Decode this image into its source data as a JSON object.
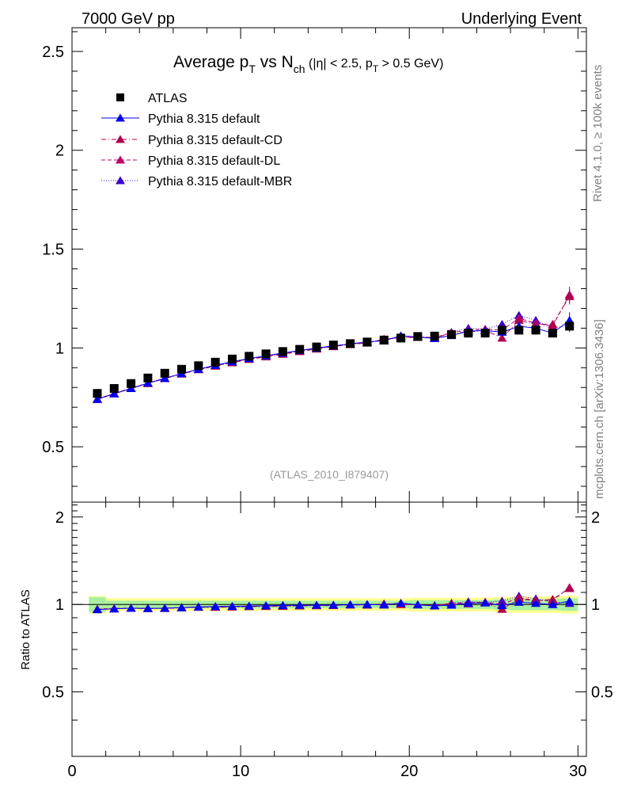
{
  "header": {
    "left": "7000 GeV pp",
    "right": "Underlying Event"
  },
  "side_labels": {
    "rivet": "Rivet 4.1.0, ≥ 100k events",
    "mcplots": "mcplots.cern.ch [arXiv:1306.3436]"
  },
  "colors": {
    "atlas": "#000000",
    "default": "#0000ee",
    "cd": "#b0004c",
    "dl": "#c0006a",
    "mbr": "#3a00cc",
    "band_inner": "#a8f0a0",
    "band_outer": "#ffff90"
  },
  "chart_data": [
    {
      "type": "scatter",
      "panel": "main",
      "title": "Average pT vs Nch (|η| < 2.5, pT > 0.5 GeV)",
      "title_parts": {
        "a": "Average p",
        "a_sub": "T",
        "b": " vs N",
        "b_sub": "ch",
        "c": " (|η| < 2.5, p",
        "c_sub": "T",
        "d": " > 0.5 GeV)"
      },
      "watermark": "(ATLAS_2010_I879407)",
      "xlim": [
        0,
        30.5
      ],
      "ylim": [
        0.22,
        2.62
      ],
      "y_ticks": [
        0.5,
        1,
        1.5,
        2,
        2.5
      ],
      "y_tick_labels": [
        "0.5",
        "1",
        "1.5",
        "2",
        "2.5"
      ],
      "x": [
        1.5,
        2.5,
        3.5,
        4.5,
        5.5,
        6.5,
        7.5,
        8.5,
        9.5,
        10.5,
        11.5,
        12.5,
        13.5,
        14.5,
        15.5,
        16.5,
        17.5,
        18.5,
        19.5,
        20.5,
        21.5,
        22.5,
        23.5,
        24.5,
        25.5,
        26.5,
        27.5,
        28.5,
        29.5
      ],
      "series": [
        {
          "name": "ATLAS",
          "marker": "square",
          "color_key": "atlas",
          "values": [
            0.77,
            0.795,
            0.82,
            0.848,
            0.872,
            0.892,
            0.91,
            0.928,
            0.944,
            0.958,
            0.97,
            0.982,
            0.993,
            1.005,
            1.015,
            1.022,
            1.03,
            1.04,
            1.05,
            1.058,
            1.06,
            1.068,
            1.075,
            1.075,
            1.09,
            1.09,
            1.09,
            1.075,
            1.11
          ]
        },
        {
          "name": "Pythia 8.315 default",
          "marker": "triangle",
          "line": "solid",
          "color_key": "default",
          "values": [
            0.74,
            0.768,
            0.795,
            0.822,
            0.846,
            0.87,
            0.892,
            0.912,
            0.93,
            0.946,
            0.96,
            0.974,
            0.987,
            0.999,
            1.01,
            1.02,
            1.03,
            1.037,
            1.062,
            1.055,
            1.048,
            1.063,
            1.085,
            1.088,
            1.08,
            1.11,
            1.1,
            1.075,
            1.14
          ]
        },
        {
          "name": "Pythia 8.315 default-CD",
          "marker": "triangle",
          "line": "dashdot",
          "color_key": "cd",
          "values": [
            0.74,
            0.768,
            0.795,
            0.82,
            0.845,
            0.868,
            0.89,
            0.908,
            0.925,
            0.942,
            0.955,
            0.968,
            0.982,
            0.995,
            1.007,
            1.018,
            1.025,
            1.045,
            1.05,
            1.055,
            1.05,
            1.075,
            1.08,
            1.09,
            1.05,
            1.14,
            1.12,
            1.12,
            1.26
          ]
        },
        {
          "name": "Pythia 8.315 default-DL",
          "marker": "triangle",
          "line": "dashed",
          "color_key": "dl",
          "values": [
            0.742,
            0.77,
            0.797,
            0.822,
            0.847,
            0.87,
            0.892,
            0.91,
            0.927,
            0.944,
            0.957,
            0.97,
            0.984,
            0.997,
            1.008,
            1.019,
            1.026,
            1.044,
            1.052,
            1.056,
            1.052,
            1.078,
            1.09,
            1.095,
            1.09,
            1.15,
            1.125,
            1.11,
            1.27
          ]
        },
        {
          "name": "Pythia 8.315 default-MBR",
          "marker": "triangle",
          "line": "dotted",
          "color_key": "mbr",
          "values": [
            0.741,
            0.769,
            0.796,
            0.823,
            0.847,
            0.871,
            0.893,
            0.913,
            0.931,
            0.947,
            0.961,
            0.975,
            0.988,
            1.0,
            1.011,
            1.021,
            1.031,
            1.036,
            1.06,
            1.056,
            1.05,
            1.08,
            1.1,
            1.095,
            1.12,
            1.165,
            1.14,
            1.095,
            1.12
          ]
        }
      ]
    },
    {
      "type": "scatter",
      "panel": "ratio",
      "ylabel": "Ratio to ATLAS",
      "xlim": [
        0,
        30.5
      ],
      "ylim": [
        0.3,
        2.25
      ],
      "y_ticks": [
        0.5,
        1,
        2
      ],
      "y_tick_labels": [
        "0.5",
        "1",
        "2"
      ],
      "x_ticks": [
        0,
        10,
        20,
        30
      ],
      "x_tick_labels": [
        "0",
        "10",
        "20",
        "30"
      ],
      "band_inner_halfwidth": [
        0.06,
        0.03,
        0.03,
        0.03,
        0.03,
        0.03,
        0.03,
        0.03,
        0.03,
        0.03,
        0.03,
        0.03,
        0.03,
        0.03,
        0.03,
        0.03,
        0.03,
        0.03,
        0.03,
        0.035,
        0.035,
        0.035,
        0.035,
        0.035,
        0.04,
        0.045,
        0.045,
        0.045,
        0.05
      ],
      "band_outer_halfwidth": [
        0.07,
        0.05,
        0.05,
        0.05,
        0.05,
        0.05,
        0.05,
        0.05,
        0.05,
        0.05,
        0.05,
        0.05,
        0.05,
        0.05,
        0.05,
        0.05,
        0.05,
        0.05,
        0.05,
        0.055,
        0.055,
        0.055,
        0.055,
        0.055,
        0.06,
        0.065,
        0.065,
        0.065,
        0.07
      ],
      "series": [
        {
          "name": "Pythia 8.315 default",
          "color_key": "default",
          "values": [
            0.96,
            0.966,
            0.97,
            0.969,
            0.97,
            0.975,
            0.98,
            0.983,
            0.985,
            0.987,
            0.99,
            0.992,
            0.994,
            0.994,
            0.995,
            0.998,
            1.0,
            0.997,
            1.011,
            0.997,
            0.989,
            0.995,
            1.009,
            1.012,
            0.991,
            1.018,
            1.009,
            1.0,
            1.027
          ]
        },
        {
          "name": "Pythia 8.315 default-CD",
          "color_key": "cd",
          "values": [
            0.961,
            0.966,
            0.97,
            0.967,
            0.969,
            0.973,
            0.978,
            0.978,
            0.98,
            0.983,
            0.985,
            0.986,
            0.989,
            0.99,
            0.992,
            0.996,
            0.995,
            1.005,
            1.0,
            0.997,
            0.991,
            1.007,
            1.005,
            1.014,
            0.963,
            1.046,
            1.028,
            1.042,
            1.135
          ]
        },
        {
          "name": "Pythia 8.315 default-DL",
          "color_key": "dl",
          "values": [
            0.964,
            0.969,
            0.972,
            0.969,
            0.971,
            0.975,
            0.98,
            0.98,
            0.982,
            0.985,
            0.987,
            0.988,
            0.991,
            0.992,
            0.993,
            0.997,
            0.996,
            1.004,
            1.002,
            0.998,
            0.992,
            1.009,
            1.014,
            1.019,
            1.0,
            1.055,
            1.032,
            1.033,
            1.144
          ]
        },
        {
          "name": "Pythia 8.315 default-MBR",
          "color_key": "mbr",
          "values": [
            0.962,
            0.967,
            0.971,
            0.971,
            0.971,
            0.976,
            0.981,
            0.984,
            0.986,
            0.988,
            0.991,
            0.993,
            0.995,
            0.995,
            0.996,
            0.999,
            1.001,
            0.996,
            1.01,
            0.998,
            0.991,
            1.011,
            1.023,
            1.019,
            1.028,
            1.069,
            1.046,
            1.019,
            1.009
          ]
        }
      ]
    }
  ]
}
